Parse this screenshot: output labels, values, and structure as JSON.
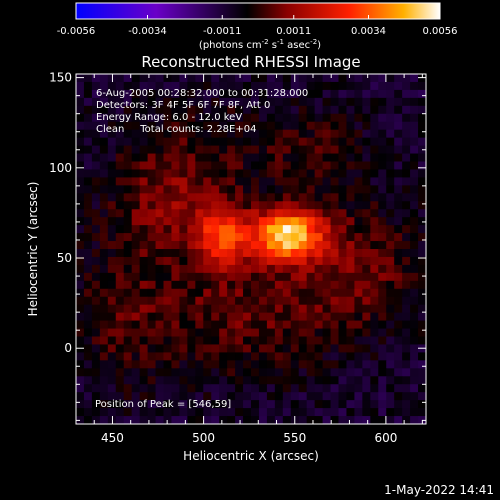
{
  "colorbar": {
    "tick_labels": [
      "-0.0056",
      "-0.0034",
      "-0.0011",
      "0.0011",
      "0.0034",
      "0.0056"
    ],
    "tick_values": [
      -0.0056,
      -0.0034,
      -0.0011,
      0.0011,
      0.0034,
      0.0056
    ],
    "range": [
      -0.0056,
      0.0056
    ],
    "unit_main": "(photons cm",
    "unit_sup1": "-2",
    "unit_mid": " s",
    "unit_sup2": "-1",
    "unit_mid2": " asec",
    "unit_sup3": "-2",
    "unit_close": ")",
    "colors": [
      "#0000ff",
      "#6a00c8",
      "#000000",
      "#8a0000",
      "#ff2000",
      "#ffb000",
      "#ffffff"
    ]
  },
  "plot": {
    "title": "Reconstructed RHESSI Image",
    "annotation_lines": [
      "6-Aug-2005 00:28:32.000 to 00:31:28.000",
      "Detectors: 3F 4F 5F 6F 7F 8F, Att 0",
      "Energy Range: 6.0 - 12.0 keV",
      "Clean     Total counts: 2.28E+04"
    ],
    "peak_label": "Position of Peak = [546,59]",
    "xlabel": "Heliocentric X (arcsec)",
    "ylabel": "Heliocentric Y (arcsec)",
    "x_ticks": [
      "450",
      "500",
      "550",
      "600"
    ],
    "y_ticks": [
      "0",
      "50",
      "100",
      "150"
    ],
    "footer": "1-May-2022 14:41"
  },
  "chart_data": {
    "type": "heatmap",
    "title": "Reconstructed RHESSI Image",
    "xlabel": "Heliocentric X (arcsec)",
    "ylabel": "Heliocentric Y (arcsec)",
    "xlim": [
      430,
      622
    ],
    "ylim": [
      -42,
      152
    ],
    "x_tick_values": [
      450,
      500,
      550,
      600
    ],
    "y_tick_values": [
      0,
      50,
      100,
      150
    ],
    "value_range": [
      -0.0056,
      0.0056
    ],
    "peak_position": [
      546,
      59
    ],
    "sources": [
      {
        "x": 546,
        "y": 63,
        "sigma_x": 14,
        "sigma_y": 10,
        "amp": 0.0056
      },
      {
        "x": 510,
        "y": 62,
        "sigma_x": 10,
        "sigma_y": 12,
        "amp": 0.0034
      },
      {
        "x": 480,
        "y": 78,
        "sigma_x": 20,
        "sigma_y": 18,
        "amp": 0.0015
      },
      {
        "x": 585,
        "y": 45,
        "sigma_x": 25,
        "sigma_y": 25,
        "amp": 0.0014
      },
      {
        "x": 520,
        "y": 20,
        "sigma_x": 35,
        "sigma_y": 25,
        "amp": 0.0013
      },
      {
        "x": 455,
        "y": 20,
        "sigma_x": 20,
        "sigma_y": 30,
        "amp": 0.001
      },
      {
        "x": 500,
        "y": 110,
        "sigma_x": 35,
        "sigma_y": 20,
        "amp": 0.0009
      },
      {
        "x": 565,
        "y": 110,
        "sigma_x": 20,
        "sigma_y": 15,
        "amp": 0.0008
      }
    ],
    "background": -0.0009
  }
}
